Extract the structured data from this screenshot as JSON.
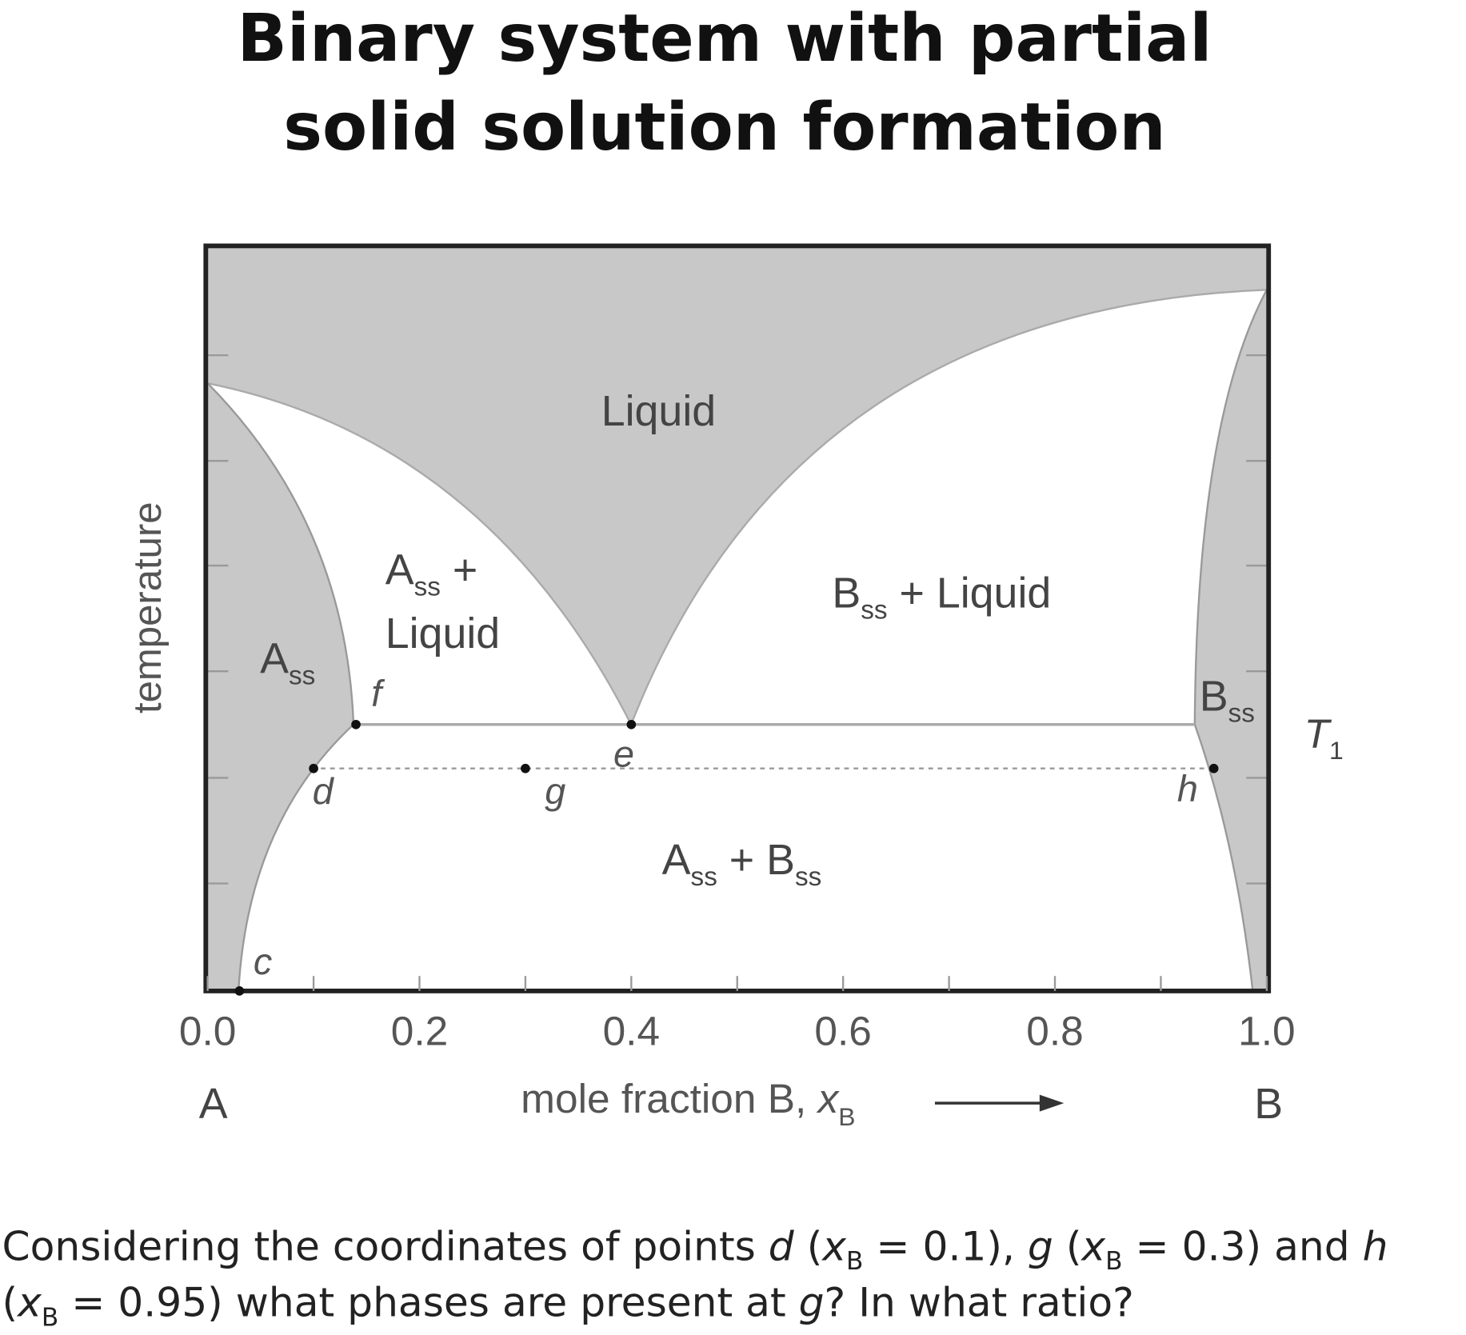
{
  "chart_data": {
    "type": "phase-diagram",
    "title": [
      "Binary system with partial",
      "solid solution formation"
    ],
    "y_label": "temperature",
    "x_label": [
      "mole fraction B, ",
      {
        "i": "x"
      },
      {
        "sub": "B"
      }
    ],
    "x_end_labels": [
      "A",
      "B"
    ],
    "xlim": [
      0,
      1
    ],
    "xticks": [
      {
        "value": 0,
        "label": "0.0"
      },
      {
        "value": 0.2,
        "label": "0.2"
      },
      {
        "value": 0.4,
        "label": "0.4"
      },
      {
        "value": 0.6,
        "label": "0.6"
      },
      {
        "value": 0.8,
        "label": "0.8"
      },
      {
        "value": 1,
        "label": "1.0"
      }
    ],
    "xminorticks": [
      0.1,
      0.3,
      0.5,
      0.7,
      0.9
    ],
    "regions": [
      [
        [
          "Liquid"
        ]
      ],
      [
        [
          "A",
          {
            "sub": "ss"
          },
          " +"
        ],
        [
          "Liquid"
        ]
      ],
      [
        [
          "B",
          {
            "sub": "ss"
          },
          " + Liquid"
        ]
      ],
      [
        [
          "A",
          {
            "sub": "ss"
          }
        ]
      ],
      [
        [
          "A",
          {
            "sub": "ss"
          },
          " + B",
          {
            "sub": "ss"
          }
        ]
      ],
      [
        [
          "B",
          {
            "sub": "ss"
          }
        ]
      ]
    ],
    "points": [
      {
        "label": "c",
        "x": 0.03
      },
      {
        "label": "d",
        "x": 0.1
      },
      {
        "label": "f",
        "x": 0.14
      },
      {
        "label": "g",
        "x": 0.3
      },
      {
        "label": "e",
        "x": 0.4
      },
      {
        "label": "h",
        "x": 0.95
      }
    ],
    "temperature_label": [
      {
        "i": "T"
      },
      {
        "sub": "1"
      }
    ]
  },
  "question": [
    [
      "Considering the coordinates of points ",
      {
        "i": "d"
      },
      " (",
      {
        "i": "x"
      },
      {
        "sub": "B"
      },
      " = 0.1), ",
      {
        "i": "g"
      },
      " (",
      {
        "i": "x"
      },
      {
        "sub": "B"
      },
      " = 0.3) and ",
      {
        "i": "h"
      }
    ],
    [
      "(",
      {
        "i": "x"
      },
      {
        "sub": "B"
      },
      " = 0.95) what phases are present at ",
      {
        "i": "g"
      },
      "? In what ratio?"
    ]
  ]
}
